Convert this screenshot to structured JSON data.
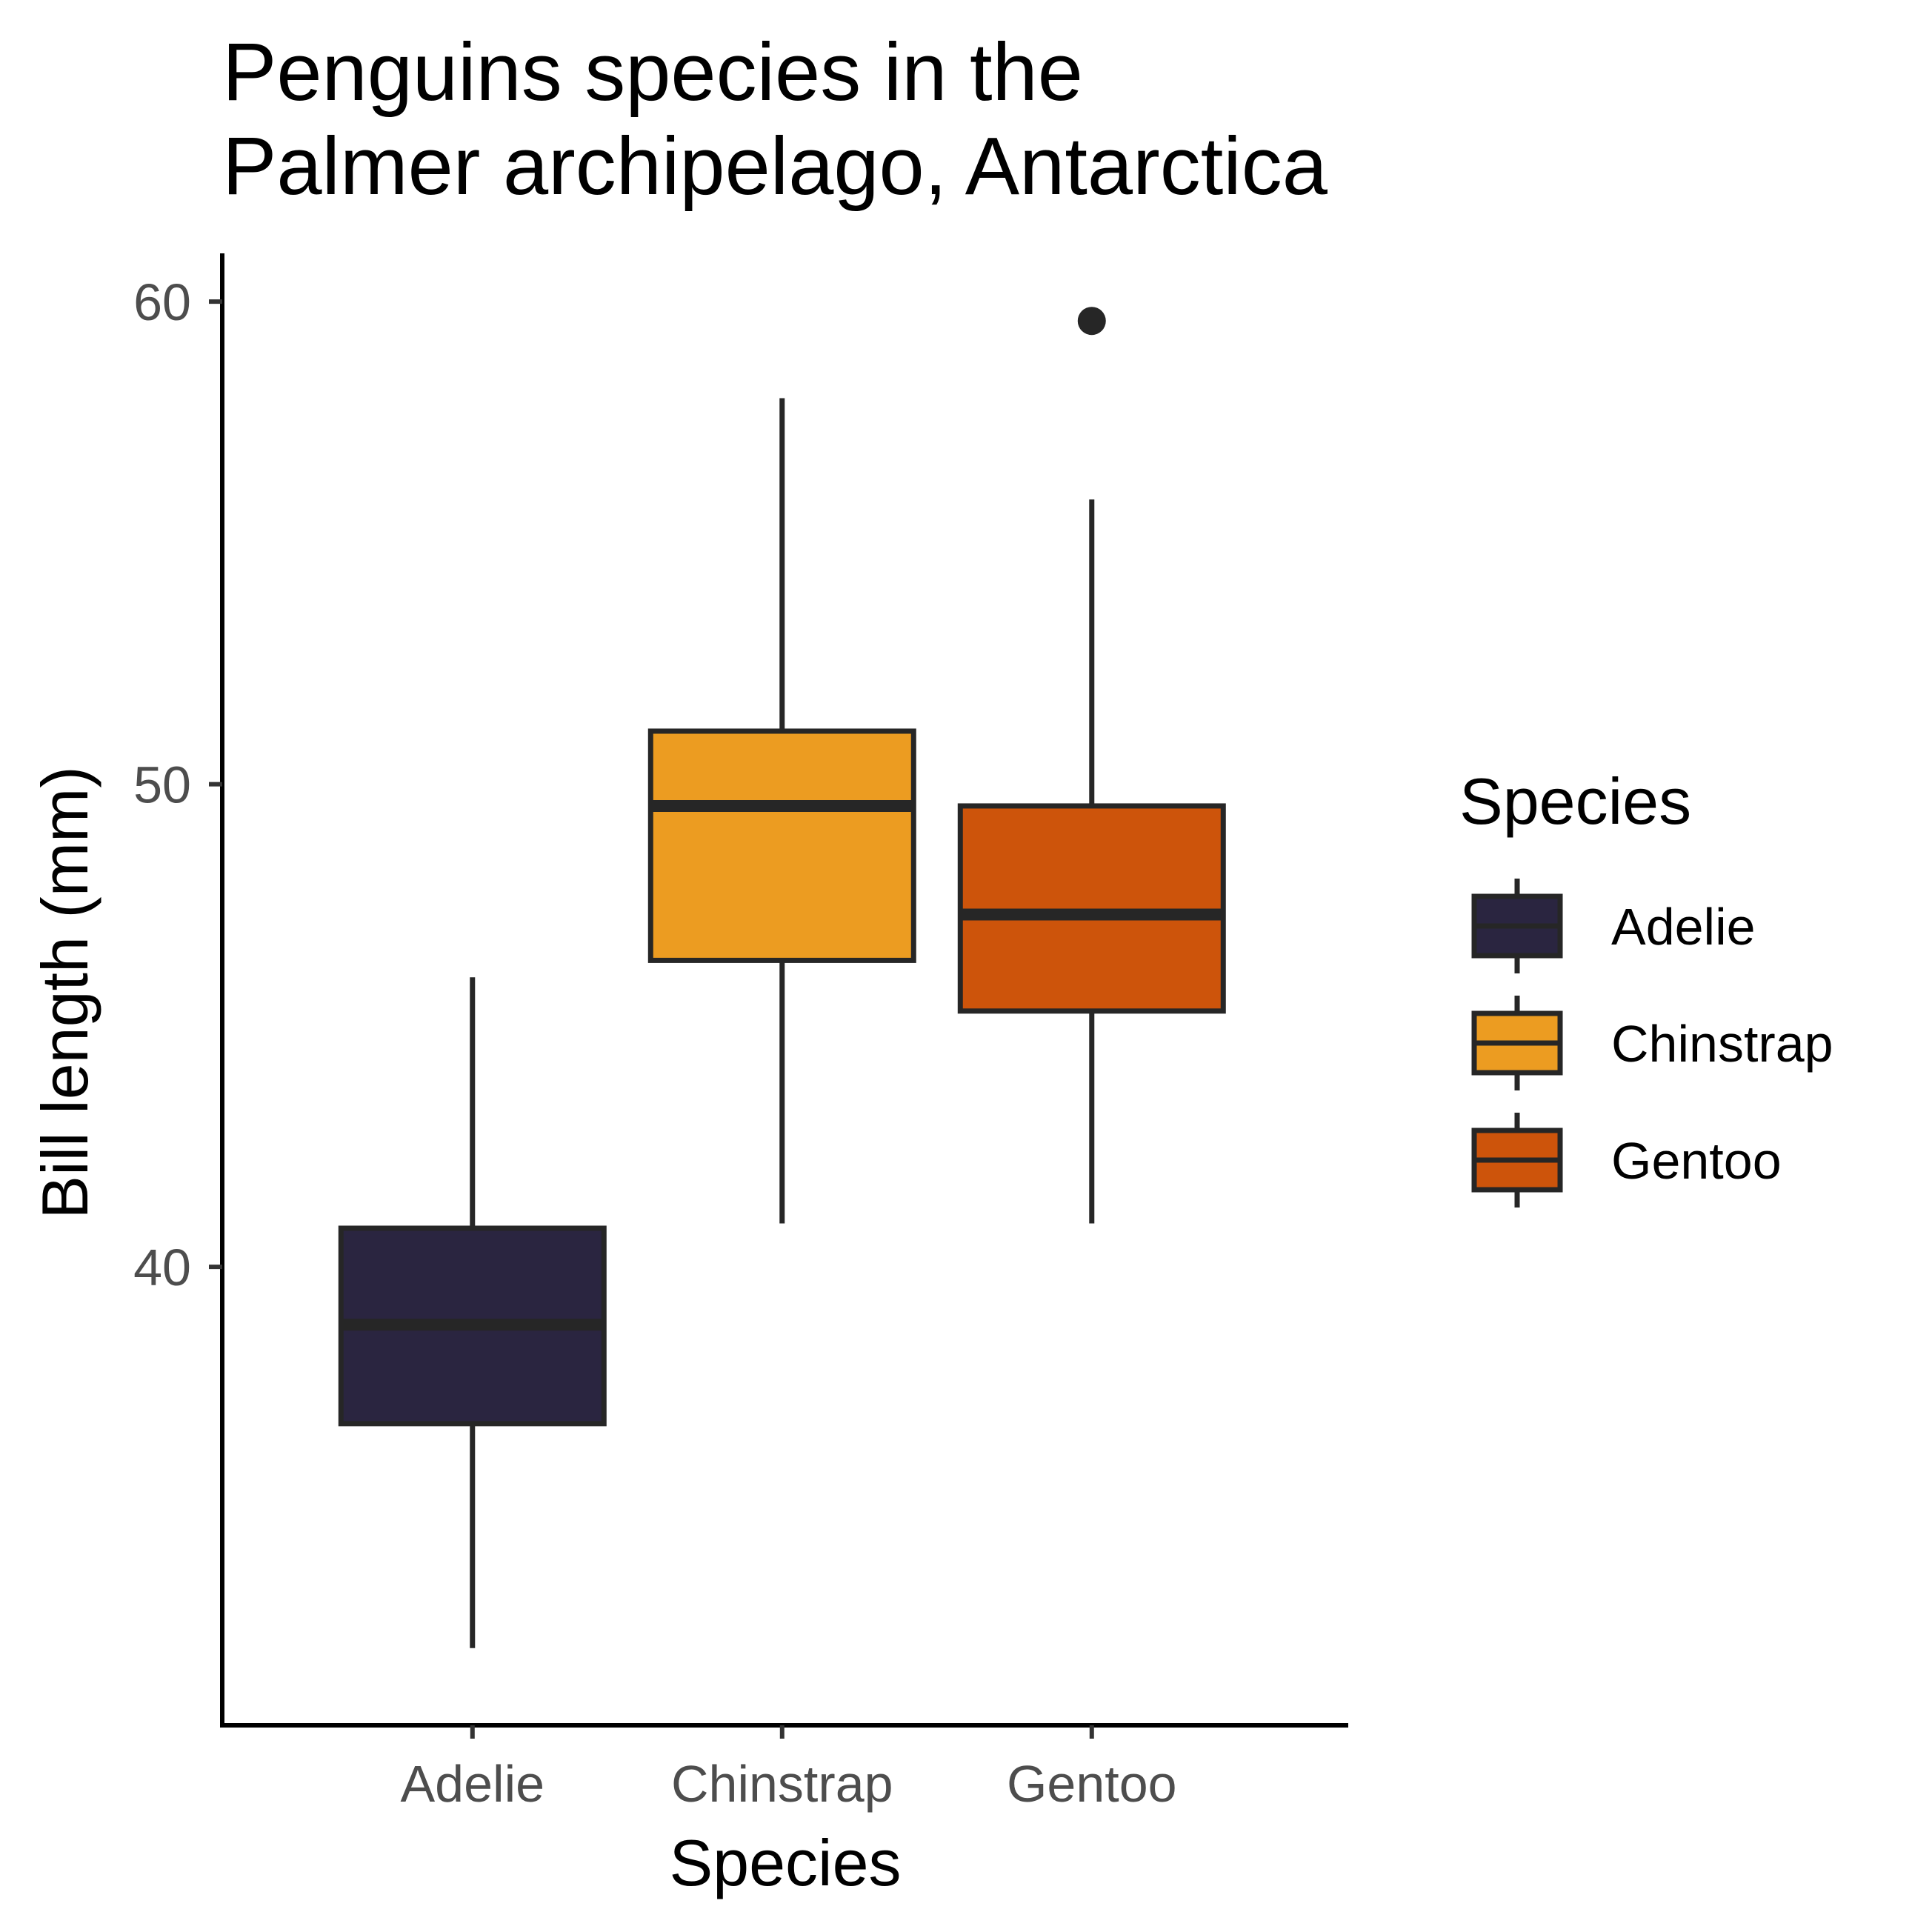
{
  "chart_data": {
    "type": "box",
    "title": [
      "Penguins species in the",
      "Palmer archipelago, Antarctica"
    ],
    "xlabel": "Species",
    "ylabel": "Bill length (mm)",
    "ylim": [
      30.5,
      61
    ],
    "yticks": [
      40,
      50,
      60
    ],
    "categories": [
      "Adelie",
      "Chinstrap",
      "Gentoo"
    ],
    "boxes": [
      {
        "category": "Adelie",
        "min": 32.1,
        "q1": 36.75,
        "median": 38.8,
        "q3": 40.8,
        "max": 46.0,
        "outliers": [],
        "color": "#2a2540"
      },
      {
        "category": "Chinstrap",
        "min": 40.9,
        "q1": 46.35,
        "median": 49.55,
        "q3": 51.1,
        "max": 58.0,
        "outliers": [],
        "color": "#ec9c21"
      },
      {
        "category": "Gentoo",
        "min": 40.9,
        "q1": 45.3,
        "median": 47.3,
        "q3": 49.55,
        "max": 55.9,
        "outliers": [
          59.6
        ],
        "color": "#cd540b"
      }
    ],
    "legend": {
      "title": "Species",
      "placement": "right",
      "items": [
        "Adelie",
        "Chinstrap",
        "Gentoo"
      ]
    }
  }
}
